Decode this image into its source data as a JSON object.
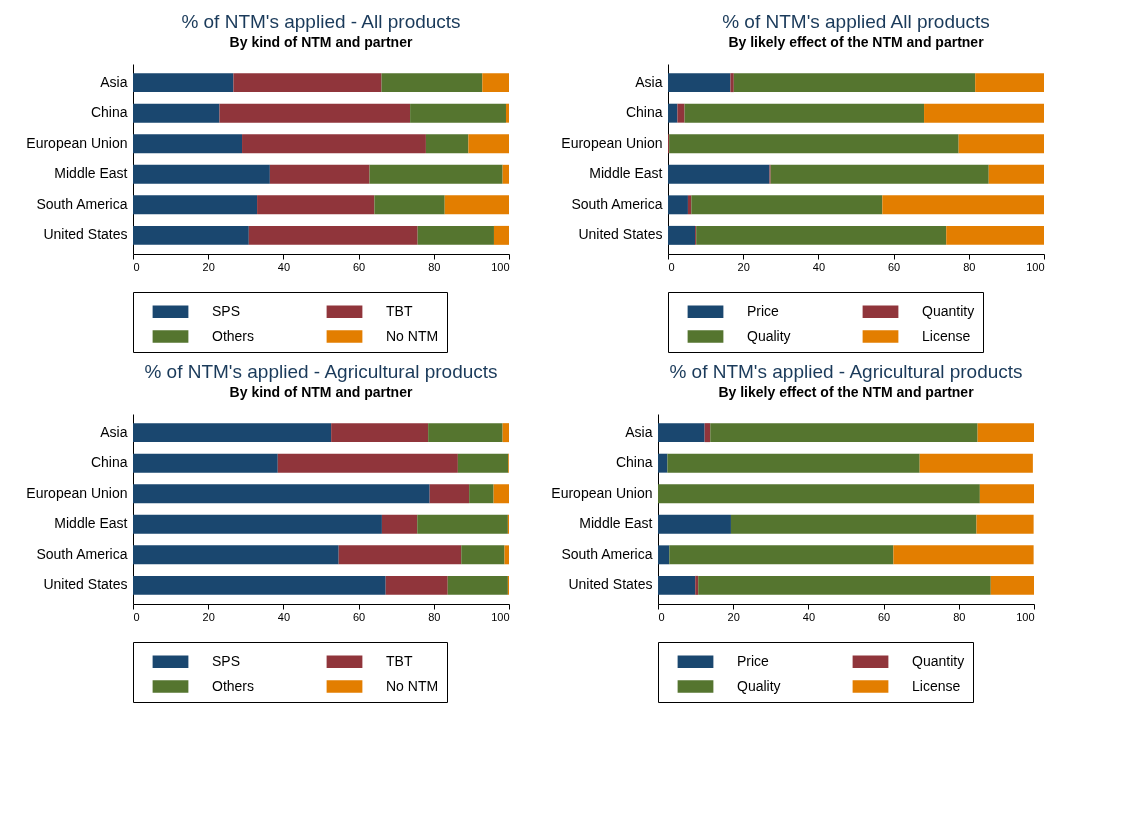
{
  "chart_data": [
    {
      "type": "bar",
      "orientation": "horizontal",
      "stacked": true,
      "title": "% of NTM's applied - All products",
      "subtitle": "By kind of NTM and partner",
      "categories": [
        "Asia",
        "China",
        "European Union",
        "Middle East",
        "South America",
        "United States"
      ],
      "xlim": [
        0,
        100
      ],
      "xticks": [
        0,
        20,
        40,
        60,
        80,
        100
      ],
      "grid": false,
      "legend": "bottom",
      "series": [
        {
          "name": "SPS",
          "color": "#1a476f",
          "values": [
            26.7,
            23.0,
            29.0,
            36.4,
            33.0,
            30.8
          ]
        },
        {
          "name": "TBT",
          "color": "#90353b",
          "values": [
            39.4,
            50.7,
            48.9,
            26.5,
            31.2,
            44.9
          ]
        },
        {
          "name": "Others",
          "color": "#55752f",
          "values": [
            26.8,
            25.5,
            11.3,
            35.4,
            18.7,
            20.3
          ]
        },
        {
          "name": "No NTM",
          "color": "#e37e00",
          "values": [
            7.1,
            0.8,
            10.8,
            1.7,
            17.1,
            4.0
          ]
        }
      ]
    },
    {
      "type": "bar",
      "orientation": "horizontal",
      "stacked": true,
      "title": "% of NTM's applied  All products",
      "subtitle": "By likely effect of the NTM and partner",
      "categories": [
        "Asia",
        "China",
        "European Union",
        "Middle East",
        "South America",
        "United States"
      ],
      "xlim": [
        0,
        100
      ],
      "xticks": [
        0,
        20,
        40,
        60,
        80,
        100
      ],
      "grid": false,
      "legend": "bottom",
      "series": [
        {
          "name": "Price",
          "color": "#1a476f",
          "values": [
            16.6,
            2.5,
            0,
            27.0,
            5.3,
            7.2
          ]
        },
        {
          "name": "Quantity",
          "color": "#90353b",
          "values": [
            0.9,
            1.9,
            0.3,
            0.3,
            0.9,
            0.3
          ]
        },
        {
          "name": "Quality",
          "color": "#55752f",
          "values": [
            64.2,
            63.7,
            77.0,
            58.0,
            50.8,
            66.5
          ]
        },
        {
          "name": "License",
          "color": "#e37e00",
          "values": [
            18.3,
            31.9,
            22.7,
            14.7,
            43.0,
            26.0
          ]
        }
      ]
    },
    {
      "type": "bar",
      "orientation": "horizontal",
      "stacked": true,
      "title": "% of NTM's applied - Agricultural products",
      "subtitle": "By kind of NTM and partner",
      "categories": [
        "Asia",
        "China",
        "European Union",
        "Middle East",
        "South America",
        "United States"
      ],
      "xlim": [
        0,
        100
      ],
      "xticks": [
        0,
        20,
        40,
        60,
        80,
        100
      ],
      "grid": false,
      "legend": "bottom",
      "series": [
        {
          "name": "SPS",
          "color": "#1a476f",
          "values": [
            52.7,
            38.5,
            78.9,
            66.2,
            54.7,
            67.2
          ]
        },
        {
          "name": "TBT",
          "color": "#90353b",
          "values": [
            25.8,
            47.9,
            10.5,
            9.4,
            32.6,
            16.5
          ]
        },
        {
          "name": "Others",
          "color": "#55752f",
          "values": [
            19.8,
            13.4,
            6.5,
            24.1,
            11.5,
            16.0
          ]
        },
        {
          "name": "No NTM",
          "color": "#e37e00",
          "values": [
            1.7,
            0.2,
            4.1,
            0.3,
            1.2,
            0.3
          ]
        }
      ]
    },
    {
      "type": "bar",
      "orientation": "horizontal",
      "stacked": true,
      "title": "% of NTM's applied - Agricultural products",
      "subtitle": "By likely effect of the NTM and partner",
      "categories": [
        "Asia",
        "China",
        "European Union",
        "Middle East",
        "South America",
        "United States"
      ],
      "xlim": [
        0,
        100
      ],
      "xticks": [
        0,
        20,
        40,
        60,
        80,
        100
      ],
      "grid": false,
      "legend": "bottom",
      "series": [
        {
          "name": "Price",
          "color": "#1a476f",
          "values": [
            12.4,
            2.5,
            0,
            19.4,
            3.0,
            9.9
          ]
        },
        {
          "name": "Quantity",
          "color": "#90353b",
          "values": [
            1.5,
            null,
            0,
            null,
            null,
            0.8
          ]
        },
        {
          "name": "Quality",
          "color": "#55752f",
          "values": [
            71.1,
            67.1,
            85.6,
            65.3,
            59.6,
            77.8
          ]
        },
        {
          "name": "License",
          "color": "#e37e00",
          "values": [
            15.0,
            30.1,
            14.4,
            15.2,
            37.3,
            11.5
          ]
        }
      ]
    }
  ]
}
